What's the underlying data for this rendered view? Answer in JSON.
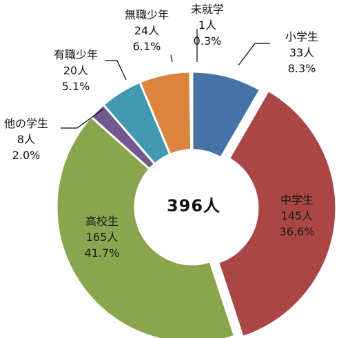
{
  "chart_data": {
    "type": "pie",
    "donut": true,
    "center_label": "396人",
    "series": [
      {
        "category": "小学生",
        "count_label": "33人",
        "percent_label": "8.3%",
        "value": 33,
        "percent": 8.3,
        "color": "#4672a8"
      },
      {
        "category": "中学生",
        "count_label": "145人",
        "percent_label": "36.6%",
        "value": 145,
        "percent": 36.6,
        "color": "#aa4643"
      },
      {
        "category": "高校生",
        "count_label": "165人",
        "percent_label": "41.7%",
        "value": 165,
        "percent": 41.7,
        "color": "#89a54e"
      },
      {
        "category": "他の学生",
        "count_label": "8人",
        "percent_label": "2.0%",
        "value": 8,
        "percent": 2.0,
        "color": "#71588f"
      },
      {
        "category": "有職少年",
        "count_label": "20人",
        "percent_label": "5.1%",
        "value": 20,
        "percent": 5.1,
        "color": "#4198af"
      },
      {
        "category": "無職少年",
        "count_label": "24人",
        "percent_label": "6.1%",
        "value": 24,
        "percent": 6.1,
        "color": "#db843d"
      },
      {
        "category": "未就学",
        "count_label": "1人",
        "percent_label": "0.3%",
        "value": 1,
        "percent": 0.3,
        "color": "#93a9cf"
      }
    ]
  }
}
